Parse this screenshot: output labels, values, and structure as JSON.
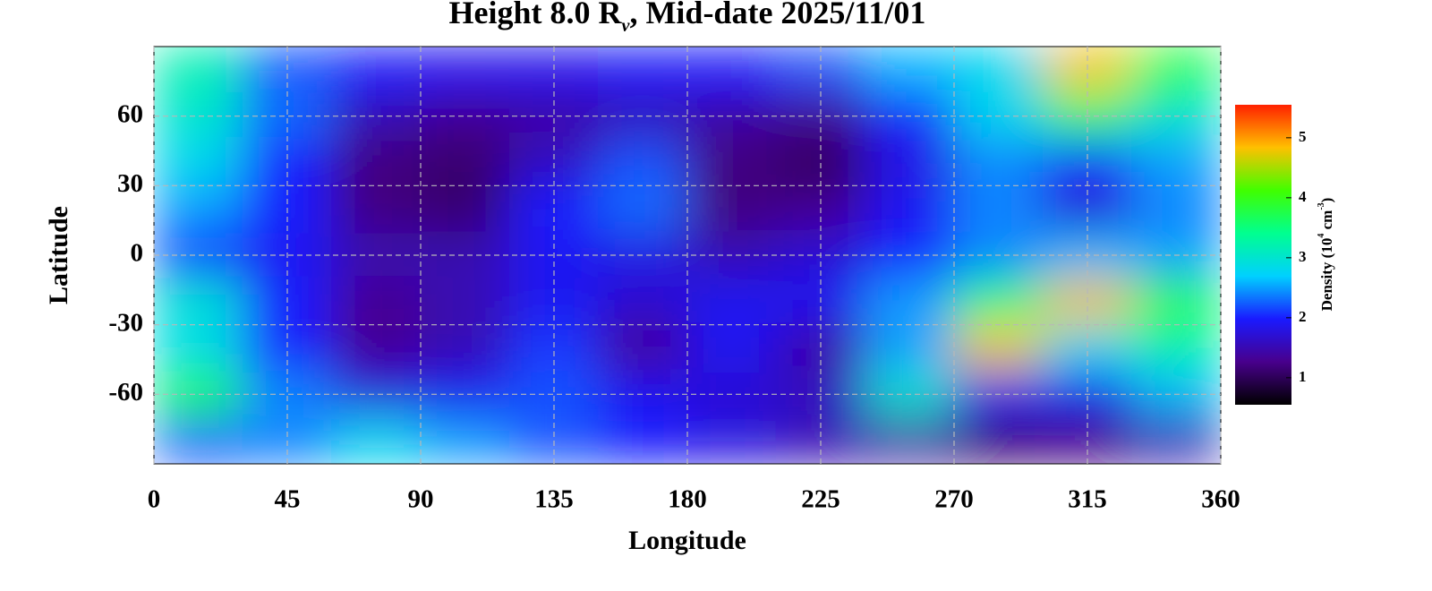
{
  "chart_data": {
    "type": "heatmap",
    "title": [
      "Height 8.0 R",
      "ν",
      ", Mid-date 2025/11/01"
    ],
    "x_label": "Longitude",
    "y_label": "Latitude",
    "colorbar_label": [
      "Density (10",
      "4",
      " cm",
      "-3",
      ")"
    ],
    "x": [
      15,
      45,
      75,
      105,
      135,
      165,
      195,
      225,
      255,
      285,
      315,
      345
    ],
    "y": [
      80,
      60,
      40,
      20,
      0,
      -20,
      -40,
      -60,
      -80
    ],
    "z": [
      [
        3.2,
        2.2,
        2.0,
        1.9,
        1.9,
        2.0,
        2.0,
        2.2,
        2.6,
        2.8,
        4.8,
        3.8
      ],
      [
        3.0,
        2.3,
        1.5,
        1.3,
        1.4,
        1.5,
        1.4,
        1.3,
        2.0,
        2.8,
        3.6,
        3.0
      ],
      [
        2.8,
        2.0,
        1.2,
        1.1,
        1.6,
        2.2,
        1.2,
        1.0,
        1.8,
        2.4,
        2.0,
        2.5
      ],
      [
        2.5,
        2.0,
        1.2,
        1.1,
        2.0,
        2.3,
        1.2,
        1.3,
        1.9,
        2.4,
        1.7,
        2.4
      ],
      [
        2.0,
        1.9,
        1.5,
        1.5,
        1.9,
        1.8,
        1.5,
        1.7,
        2.0,
        2.4,
        2.6,
        2.5
      ],
      [
        3.0,
        2.0,
        1.3,
        1.5,
        1.9,
        1.7,
        1.9,
        1.9,
        2.5,
        3.5,
        4.8,
        3.8
      ],
      [
        2.8,
        2.0,
        1.3,
        1.5,
        2.1,
        1.3,
        1.9,
        1.4,
        2.5,
        4.8,
        2.8,
        3.2
      ],
      [
        3.8,
        2.4,
        1.8,
        1.9,
        2.2,
        1.9,
        1.7,
        1.6,
        3.0,
        1.9,
        1.9,
        2.6
      ],
      [
        2.2,
        2.4,
        2.8,
        2.5,
        2.2,
        2.0,
        1.8,
        1.5,
        1.4,
        1.1,
        1.2,
        1.5
      ]
    ],
    "xlim": [
      0,
      360
    ],
    "xticks": [
      0,
      45,
      90,
      135,
      180,
      225,
      270,
      315,
      360
    ],
    "ylim": [
      -90,
      90
    ],
    "yticks": [
      -60,
      -30,
      0,
      30,
      60
    ],
    "zlim": [
      0.55,
      5.55
    ],
    "zticks": [
      1,
      2,
      3,
      4,
      5
    ],
    "colorscale": [
      "#000000",
      "#48008c",
      "#1a1aff",
      "#00d0ff",
      "#00ff90",
      "#40ff00",
      "#ffc000",
      "#ff2000"
    ],
    "grid": true
  }
}
